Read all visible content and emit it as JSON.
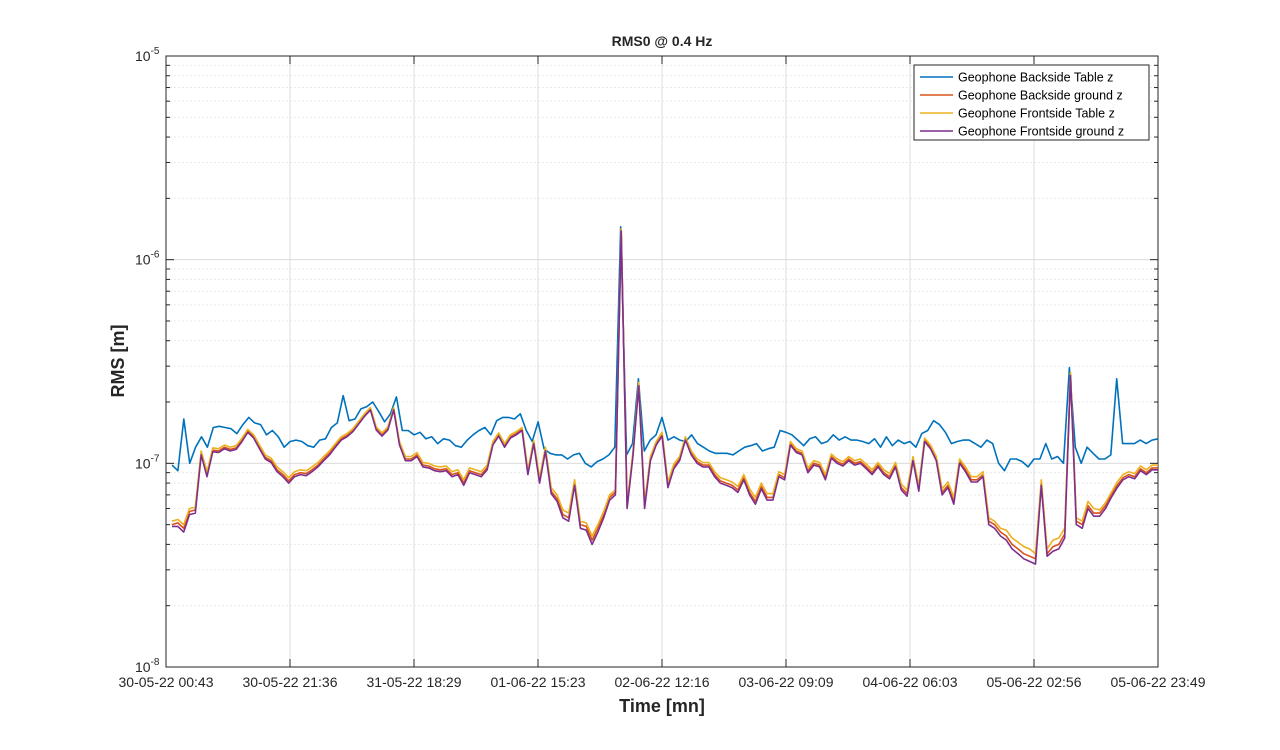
{
  "chart_data": {
    "type": "line",
    "title": "RMS0 @ 0.4 Hz",
    "xlabel": "Time [mn]",
    "ylabel": "RMS [m]",
    "yscale": "log",
    "ylim": [
      1e-08,
      1e-05
    ],
    "y_tick_labels": [
      {
        "value": 1e-08,
        "base": "10",
        "exp": "-8"
      },
      {
        "value": 1e-07,
        "base": "10",
        "exp": "-7"
      },
      {
        "value": 1e-06,
        "base": "10",
        "exp": "-6"
      },
      {
        "value": 1e-05,
        "base": "10",
        "exp": "-5"
      }
    ],
    "x_tick_labels": [
      "30-05-22 00:43",
      "30-05-22 21:36",
      "31-05-22 18:29",
      "01-06-22 15:23",
      "02-06-22 12:16",
      "03-06-22 09:09",
      "04-06-22 06:03",
      "05-06-22 02:56",
      "05-06-22 23:49"
    ],
    "x_range": [
      "30-05-22 00:43",
      "05-06-22 23:49"
    ],
    "grid": true,
    "legend_position": "top-right",
    "series": [
      {
        "name": "Geophone Backside Table z",
        "color": "#0072BD",
        "values": [
          9.8e-08,
          9.2e-08,
          1.65e-07,
          1e-07,
          1.2e-07,
          1.35e-07,
          1.2e-07,
          1.5e-07,
          1.52e-07,
          1.5e-07,
          1.48e-07,
          1.4e-07,
          1.55e-07,
          1.68e-07,
          1.58e-07,
          1.55e-07,
          1.38e-07,
          1.45e-07,
          1.35e-07,
          1.2e-07,
          1.28e-07,
          1.3e-07,
          1.28e-07,
          1.22e-07,
          1.2e-07,
          1.3e-07,
          1.32e-07,
          1.5e-07,
          1.58e-07,
          2.15e-07,
          1.62e-07,
          1.65e-07,
          1.85e-07,
          1.9e-07,
          2e-07,
          1.8e-07,
          1.6e-07,
          1.75e-07,
          2.12e-07,
          1.45e-07,
          1.45e-07,
          1.38e-07,
          1.42e-07,
          1.32e-07,
          1.35e-07,
          1.25e-07,
          1.32e-07,
          1.3e-07,
          1.22e-07,
          1.2e-07,
          1.3e-07,
          1.38e-07,
          1.45e-07,
          1.5e-07,
          1.38e-07,
          1.62e-07,
          1.68e-07,
          1.68e-07,
          1.65e-07,
          1.75e-07,
          1.45e-07,
          1.28e-07,
          1.6e-07,
          1.18e-07,
          1.12e-07,
          1.1e-07,
          1.1e-07,
          1.05e-07,
          1.1e-07,
          1.12e-07,
          1e-07,
          9.6e-08,
          1.02e-07,
          1.05e-07,
          1.1e-07,
          1.2e-07,
          1.45e-06,
          1.1e-07,
          1.25e-07,
          2.6e-07,
          1.15e-07,
          1.3e-07,
          1.38e-07,
          1.68e-07,
          1.3e-07,
          1.35e-07,
          1.3e-07,
          1.28e-07,
          1.38e-07,
          1.25e-07,
          1.2e-07,
          1.15e-07,
          1.12e-07,
          1.12e-07,
          1.12e-07,
          1.1e-07,
          1.15e-07,
          1.2e-07,
          1.22e-07,
          1.25e-07,
          1.15e-07,
          1.18e-07,
          1.2e-07,
          1.45e-07,
          1.42e-07,
          1.38e-07,
          1.3e-07,
          1.22e-07,
          1.32e-07,
          1.35e-07,
          1.25e-07,
          1.28e-07,
          1.38e-07,
          1.3e-07,
          1.35e-07,
          1.3e-07,
          1.3e-07,
          1.28e-07,
          1.25e-07,
          1.32e-07,
          1.2e-07,
          1.35e-07,
          1.22e-07,
          1.3e-07,
          1.25e-07,
          1.28e-07,
          1.2e-07,
          1.4e-07,
          1.45e-07,
          1.62e-07,
          1.55e-07,
          1.42e-07,
          1.25e-07,
          1.28e-07,
          1.3e-07,
          1.3e-07,
          1.25e-07,
          1.2e-07,
          1.3e-07,
          1.25e-07,
          1e-07,
          9.2e-08,
          1.05e-07,
          1.05e-07,
          1.02e-07,
          9.6e-08,
          1.05e-07,
          1.05e-07,
          1.25e-07,
          1.05e-07,
          1.08e-07,
          1e-07,
          2.95e-07,
          1.2e-07,
          1e-07,
          1.2e-07,
          1.12e-07,
          1.05e-07,
          1.05e-07,
          1.1e-07,
          2.6e-07,
          1.25e-07,
          1.25e-07,
          1.25e-07,
          1.3e-07,
          1.25e-07,
          1.3e-07,
          1.32e-07
        ]
      },
      {
        "name": "Geophone Backside ground z",
        "color": "#D95319",
        "values": [
          5e-08,
          5.1e-08,
          4.8e-08,
          5.8e-08,
          5.9e-08,
          1.12e-07,
          8.8e-08,
          1.16e-07,
          1.15e-07,
          1.2e-07,
          1.17e-07,
          1.19e-07,
          1.3e-07,
          1.44e-07,
          1.35e-07,
          1.2e-07,
          1.07e-07,
          1.03e-07,
          9.3e-08,
          8.8e-08,
          8.2e-08,
          8.8e-08,
          9e-08,
          8.9e-08,
          9.3e-08,
          9.8e-08,
          1.05e-07,
          1.12e-07,
          1.22e-07,
          1.32e-07,
          1.37e-07,
          1.45e-07,
          1.58e-07,
          1.72e-07,
          1.85e-07,
          1.48e-07,
          1.38e-07,
          1.48e-07,
          1.85e-07,
          1.25e-07,
          1.05e-07,
          1.05e-07,
          1.1e-07,
          9.8e-08,
          9.7e-08,
          9.4e-08,
          9.3e-08,
          9.4e-08,
          8.8e-08,
          9e-08,
          8e-08,
          9.2e-08,
          9e-08,
          8.8e-08,
          9.5e-08,
          1.25e-07,
          1.38e-07,
          1.22e-07,
          1.35e-07,
          1.4e-07,
          1.47e-07,
          9e-08,
          1.27e-07,
          8.2e-08,
          1.17e-07,
          7.3e-08,
          6.7e-08,
          5.6e-08,
          5.4e-08,
          8e-08,
          5e-08,
          4.9e-08,
          4.2e-08,
          4.8e-08,
          5.6e-08,
          6.8e-08,
          7.2e-08,
          1.4e-06,
          6.2e-08,
          1.1e-07,
          2.45e-07,
          6.2e-08,
          1.05e-07,
          1.25e-07,
          1.38e-07,
          7.8e-08,
          9.6e-08,
          1.05e-07,
          1.32e-07,
          1.12e-07,
          1.02e-07,
          9.8e-08,
          9.8e-08,
          8.8e-08,
          8.2e-08,
          8e-08,
          7.8e-08,
          7.4e-08,
          8.5e-08,
          7.2e-08,
          6.5e-08,
          7.7e-08,
          6.8e-08,
          6.8e-08,
          8.8e-08,
          8.5e-08,
          1.25e-07,
          1.15e-07,
          1.12e-07,
          9.2e-08,
          1e-07,
          9.8e-08,
          8.5e-08,
          1.08e-07,
          1.02e-07,
          9.9e-08,
          1.05e-07,
          1e-07,
          1.02e-07,
          9.6e-08,
          9e-08,
          9.8e-08,
          9e-08,
          8.6e-08,
          9.8e-08,
          7.6e-08,
          7.1e-08,
          1.05e-07,
          7.5e-08,
          1.3e-07,
          1.2e-07,
          1.05e-07,
          7.2e-08,
          7.8e-08,
          6.5e-08,
          1.02e-07,
          9.3e-08,
          8.3e-08,
          8.3e-08,
          8.8e-08,
          5.2e-08,
          5e-08,
          4.6e-08,
          4.4e-08,
          4e-08,
          3.8e-08,
          3.6e-08,
          3.5e-08,
          3.4e-08,
          8e-08,
          3.6e-08,
          3.9e-08,
          4e-08,
          4.5e-08,
          2.75e-07,
          5.2e-08,
          5e-08,
          6.2e-08,
          5.7e-08,
          5.7e-08,
          6.2e-08,
          7e-08,
          7.8e-08,
          8.5e-08,
          8.8e-08,
          8.6e-08,
          9.4e-08,
          9e-08,
          9.5e-08,
          9.5e-08
        ]
      },
      {
        "name": "Geophone Frontside Table z",
        "color": "#EDB120",
        "values": [
          5.2e-08,
          5.3e-08,
          5e-08,
          6e-08,
          6.1e-08,
          1.15e-07,
          9.1e-08,
          1.19e-07,
          1.18e-07,
          1.23e-07,
          1.2e-07,
          1.22e-07,
          1.33e-07,
          1.47e-07,
          1.38e-07,
          1.23e-07,
          1.1e-07,
          1.06e-07,
          9.6e-08,
          9.1e-08,
          8.5e-08,
          9.1e-08,
          9.3e-08,
          9.2e-08,
          9.6e-08,
          1.01e-07,
          1.08e-07,
          1.15e-07,
          1.25e-07,
          1.35e-07,
          1.4e-07,
          1.48e-07,
          1.61e-07,
          1.75e-07,
          1.88e-07,
          1.51e-07,
          1.41e-07,
          1.51e-07,
          1.88e-07,
          1.28e-07,
          1.08e-07,
          1.08e-07,
          1.13e-07,
          1.01e-07,
          1e-07,
          9.7e-08,
          9.6e-08,
          9.7e-08,
          9.1e-08,
          9.3e-08,
          8.3e-08,
          9.5e-08,
          9.3e-08,
          9.1e-08,
          9.8e-08,
          1.28e-07,
          1.41e-07,
          1.25e-07,
          1.38e-07,
          1.43e-07,
          1.5e-07,
          9.3e-08,
          1.3e-07,
          8.5e-08,
          1.2e-07,
          7.6e-08,
          7e-08,
          5.9e-08,
          5.7e-08,
          8.3e-08,
          5.2e-08,
          5.1e-08,
          4.4e-08,
          5e-08,
          5.8e-08,
          7e-08,
          7.4e-08,
          1.42e-06,
          6.4e-08,
          1.13e-07,
          2.5e-07,
          6.4e-08,
          1.08e-07,
          1.28e-07,
          1.42e-07,
          8.1e-08,
          9.9e-08,
          1.08e-07,
          1.35e-07,
          1.15e-07,
          1.05e-07,
          1.01e-07,
          1.01e-07,
          9.1e-08,
          8.5e-08,
          8.3e-08,
          8.1e-08,
          7.7e-08,
          8.8e-08,
          7.5e-08,
          6.8e-08,
          8e-08,
          7.1e-08,
          7.1e-08,
          9.1e-08,
          8.8e-08,
          1.28e-07,
          1.18e-07,
          1.15e-07,
          9.5e-08,
          1.03e-07,
          1.01e-07,
          8.8e-08,
          1.11e-07,
          1.05e-07,
          1.02e-07,
          1.08e-07,
          1.03e-07,
          1.05e-07,
          9.9e-08,
          9.3e-08,
          1.01e-07,
          9.3e-08,
          8.9e-08,
          1.01e-07,
          7.9e-08,
          7.4e-08,
          1.08e-07,
          7.8e-08,
          1.33e-07,
          1.23e-07,
          1.08e-07,
          7.5e-08,
          8.1e-08,
          6.8e-08,
          1.05e-07,
          9.6e-08,
          8.6e-08,
          8.6e-08,
          9.1e-08,
          5.4e-08,
          5.2e-08,
          4.8e-08,
          4.7e-08,
          4.3e-08,
          4.1e-08,
          3.9e-08,
          3.8e-08,
          3.6e-08,
          8.3e-08,
          3.8e-08,
          4.2e-08,
          4.3e-08,
          4.8e-08,
          2.8e-07,
          5.4e-08,
          5.2e-08,
          6.5e-08,
          6e-08,
          5.9e-08,
          6.4e-08,
          7.2e-08,
          8.1e-08,
          8.8e-08,
          9.1e-08,
          8.9e-08,
          9.7e-08,
          9.3e-08,
          9.8e-08,
          9.8e-08
        ]
      },
      {
        "name": "Geophone Frontside ground z",
        "color": "#7E2F8E",
        "values": [
          4.9e-08,
          4.9e-08,
          4.6e-08,
          5.6e-08,
          5.7e-08,
          1.1e-07,
          8.6e-08,
          1.14e-07,
          1.13e-07,
          1.18e-07,
          1.15e-07,
          1.17e-07,
          1.28e-07,
          1.42e-07,
          1.33e-07,
          1.18e-07,
          1.05e-07,
          1.01e-07,
          9.1e-08,
          8.6e-08,
          8e-08,
          8.6e-08,
          8.8e-08,
          8.7e-08,
          9.1e-08,
          9.6e-08,
          1.03e-07,
          1.1e-07,
          1.2e-07,
          1.3e-07,
          1.35e-07,
          1.43e-07,
          1.56e-07,
          1.7e-07,
          1.83e-07,
          1.46e-07,
          1.36e-07,
          1.46e-07,
          1.83e-07,
          1.23e-07,
          1.03e-07,
          1.03e-07,
          1.08e-07,
          9.6e-08,
          9.5e-08,
          9.2e-08,
          9.1e-08,
          9.2e-08,
          8.6e-08,
          8.8e-08,
          7.8e-08,
          9e-08,
          8.8e-08,
          8.6e-08,
          9.3e-08,
          1.23e-07,
          1.36e-07,
          1.2e-07,
          1.33e-07,
          1.38e-07,
          1.45e-07,
          8.8e-08,
          1.25e-07,
          8e-08,
          1.15e-07,
          7.1e-08,
          6.5e-08,
          5.4e-08,
          5.2e-08,
          7.8e-08,
          4.8e-08,
          4.7e-08,
          4e-08,
          4.6e-08,
          5.4e-08,
          6.6e-08,
          7e-08,
          1.38e-06,
          6e-08,
          1.08e-07,
          2.4e-07,
          6e-08,
          1.03e-07,
          1.23e-07,
          1.36e-07,
          7.6e-08,
          9.4e-08,
          1.03e-07,
          1.3e-07,
          1.1e-07,
          1e-07,
          9.6e-08,
          9.6e-08,
          8.6e-08,
          8e-08,
          7.8e-08,
          7.6e-08,
          7.2e-08,
          8.3e-08,
          7e-08,
          6.3e-08,
          7.5e-08,
          6.6e-08,
          6.6e-08,
          8.6e-08,
          8.3e-08,
          1.23e-07,
          1.13e-07,
          1.1e-07,
          9e-08,
          9.8e-08,
          9.6e-08,
          8.3e-08,
          1.06e-07,
          1e-07,
          9.7e-08,
          1.03e-07,
          9.8e-08,
          1e-07,
          9.4e-08,
          8.8e-08,
          9.6e-08,
          8.8e-08,
          8.4e-08,
          9.6e-08,
          7.4e-08,
          6.9e-08,
          1.03e-07,
          7.3e-08,
          1.28e-07,
          1.18e-07,
          1.03e-07,
          7e-08,
          7.6e-08,
          6.3e-08,
          1e-07,
          9.1e-08,
          8.1e-08,
          8.1e-08,
          8.6e-08,
          5e-08,
          4.8e-08,
          4.4e-08,
          4.2e-08,
          3.8e-08,
          3.6e-08,
          3.4e-08,
          3.3e-08,
          3.2e-08,
          7.8e-08,
          3.5e-08,
          3.7e-08,
          3.8e-08,
          4.3e-08,
          2.7e-07,
          5e-08,
          4.8e-08,
          6e-08,
          5.5e-08,
          5.5e-08,
          6e-08,
          6.8e-08,
          7.6e-08,
          8.3e-08,
          8.6e-08,
          8.4e-08,
          9.2e-08,
          8.8e-08,
          9.3e-08,
          9.3e-08
        ]
      }
    ]
  }
}
